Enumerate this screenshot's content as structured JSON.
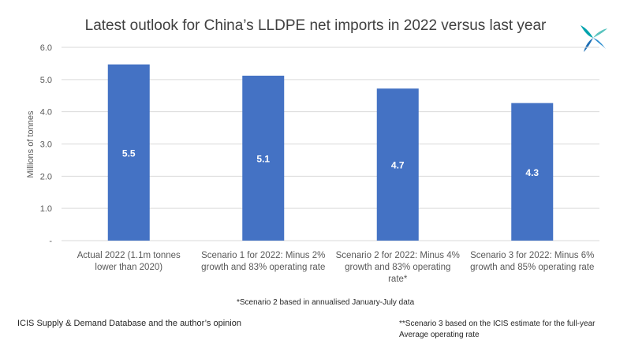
{
  "chart_data": {
    "type": "bar",
    "title": "Latest outlook for China’s LLDPE net imports in 2022 versus last year",
    "ylabel": "Millions of tonnes",
    "xlabel": "",
    "ylim": [
      0,
      6
    ],
    "y_ticks": [
      "-",
      "1.0",
      "2.0",
      "3.0",
      "4.0",
      "5.0",
      "6.0"
    ],
    "grid": true,
    "categories": [
      [
        "Actual 2022 (1.1m tonnes",
        "lower than 2020)"
      ],
      [
        "Scenario 1 for 2022: Minus 2%",
        "growth and 83% operating rate"
      ],
      [
        "Scenario 2 for 2022: Minus 4%",
        "growth and 83% operating",
        "rate*"
      ],
      [
        "Scenario 3 for 2022: Minus 6%",
        "growth and 85% operating rate"
      ]
    ],
    "values": [
      5.47,
      5.12,
      4.72,
      4.27
    ],
    "data_labels": [
      "5.5",
      "5.1",
      "4.7",
      "4.3"
    ],
    "bar_color": "#4472C4",
    "label_color": "#FFFFFF",
    "gridline_color": "#D9D9D9"
  },
  "footnotes": {
    "scenario2": "*Scenario 2 based in annualised January-July data",
    "scenario3_line1": "**Scenario 3 based on the ICIS estimate for the full-year",
    "scenario3_line2": "Average operating rate"
  },
  "source": "ICIS Supply  & Demand Database and the author’s opinion",
  "logo": {
    "icon": "icis-logo-icon",
    "colors": [
      "#00A3AD",
      "#5BC4BF",
      "#1F6FB5"
    ]
  }
}
